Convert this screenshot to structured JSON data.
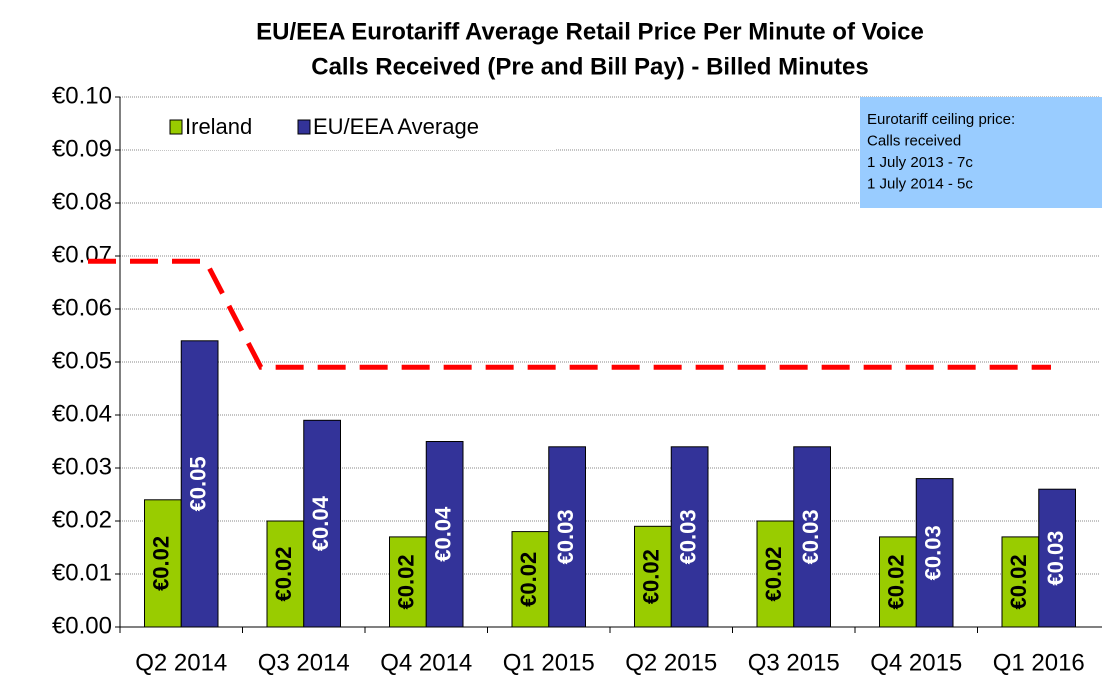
{
  "chart_data": {
    "type": "bar",
    "title": [
      "EU/EEA Eurotariff Average Retail Price Per Minute of Voice",
      "Calls Received (Pre and Bill Pay) - Billed Minutes"
    ],
    "categories": [
      "Q2 2014",
      "Q3 2014",
      "Q4 2014",
      "Q1 2015",
      "Q2 2015",
      "Q3 2015",
      "Q4 2015",
      "Q1 2016"
    ],
    "series": [
      {
        "name": "Ireland",
        "color": "#99cc00",
        "values": [
          0.024,
          0.02,
          0.017,
          0.018,
          0.019,
          0.02,
          0.017,
          0.017
        ],
        "value_labels": [
          "€0.02",
          "€0.02",
          "€0.02",
          "€0.02",
          "€0.02",
          "€0.02",
          "€0.02",
          "€0.02"
        ],
        "label_color": "#000000"
      },
      {
        "name": "EU/EEA Average",
        "color": "#333399",
        "values": [
          0.054,
          0.039,
          0.035,
          0.034,
          0.034,
          0.034,
          0.028,
          0.026
        ],
        "value_labels": [
          "€0.05",
          "€0.04",
          "€0.04",
          "€0.03",
          "€0.03",
          "€0.03",
          "€0.03",
          "€0.03"
        ],
        "label_color": "#ffffff"
      }
    ],
    "ceiling": {
      "type": "line",
      "color": "#ff0000",
      "values": [
        0.069,
        0.049,
        0.049,
        0.049,
        0.049,
        0.049,
        0.049,
        0.049
      ]
    },
    "annotation": [
      "Eurotariff ceiling price:",
      "Calls received",
      "1 July 2013 - 7c",
      "1 July 2014 - 5c"
    ],
    "ylim": [
      0,
      0.1
    ],
    "yticks": [
      {
        "value": 0,
        "label": "€0.00"
      },
      {
        "value": 0.01,
        "label": "€0.01"
      },
      {
        "value": 0.02,
        "label": "€0.02"
      },
      {
        "value": 0.03,
        "label": "€0.03"
      },
      {
        "value": 0.04,
        "label": "€0.04"
      },
      {
        "value": 0.05,
        "label": "€0.05"
      },
      {
        "value": 0.06,
        "label": "€0.06"
      },
      {
        "value": 0.07,
        "label": "€0.07"
      },
      {
        "value": 0.08,
        "label": "€0.08"
      },
      {
        "value": 0.09,
        "label": "€0.09"
      },
      {
        "value": 0.1,
        "label": "€0.10"
      }
    ],
    "grid": true,
    "legend": "top-left"
  }
}
